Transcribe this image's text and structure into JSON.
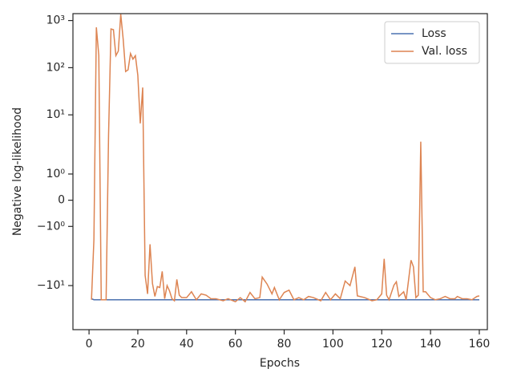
{
  "chart_data": {
    "type": "line",
    "xlabel": "Epochs",
    "ylabel": "Negative log-likelihood",
    "yscale": "symlog",
    "x": [
      1,
      2,
      3,
      4,
      5,
      6,
      7,
      8,
      9,
      10,
      11,
      12,
      13,
      14,
      15,
      16,
      17,
      18,
      19,
      20,
      21,
      22,
      23,
      24,
      25,
      26,
      27,
      28,
      29,
      30,
      31,
      32,
      33,
      34,
      35,
      36,
      37,
      38,
      40,
      42,
      44,
      46,
      48,
      50,
      52,
      55,
      57,
      60,
      62,
      64,
      66,
      68,
      70,
      71,
      73,
      75,
      76,
      78,
      80,
      82,
      84,
      86,
      88,
      90,
      92,
      95,
      97,
      99,
      101,
      103,
      105,
      107,
      109,
      110,
      113,
      116,
      118,
      120,
      121,
      122,
      123,
      125,
      126,
      127,
      129,
      130,
      132,
      133,
      134,
      135,
      136,
      137,
      138,
      140,
      142,
      144,
      146,
      148,
      150,
      151,
      153,
      155,
      157,
      159,
      160
    ],
    "series": [
      {
        "name": "Loss",
        "color": "#4c72b0",
        "values": [
          -19,
          -20,
          -20,
          -20,
          -20,
          -20,
          -20,
          -20,
          -20,
          -20,
          -20,
          -20,
          -20,
          -20,
          -20,
          -20,
          -20,
          -20,
          -20,
          -20,
          -20,
          -20,
          -20,
          -20,
          -20,
          -20,
          -20,
          -20,
          -20,
          -20,
          -20,
          -20,
          -20,
          -20,
          -20,
          -20,
          -20,
          -20,
          -20,
          -20,
          -20,
          -20,
          -20,
          -20,
          -20,
          -20,
          -20,
          -20,
          -20,
          -20,
          -20,
          -20,
          -20,
          -20,
          -20,
          -20,
          -20,
          -20,
          -20,
          -20,
          -20,
          -20,
          -20,
          -20,
          -20,
          -20,
          -20,
          -20,
          -20,
          -20,
          -20,
          -20,
          -20,
          -20,
          -20,
          -20,
          -20,
          -20,
          -20,
          -20,
          -20,
          -20,
          -20,
          -20,
          -20,
          -20,
          -20,
          -20,
          -20,
          -20,
          -20,
          -20,
          -20,
          -20,
          -20,
          -20,
          -20,
          -20,
          -20,
          -20,
          -20,
          -20,
          -20,
          -20,
          -20
        ]
      },
      {
        "name": "Val. loss",
        "color": "#dd8452",
        "values": [
          -20,
          -1.5,
          716,
          182,
          -20,
          -20,
          -20,
          3.7,
          663,
          640,
          180,
          225,
          1365,
          400,
          83,
          90,
          200,
          152,
          180,
          69,
          6.6,
          38,
          -6.1,
          -15,
          -1.68,
          -9,
          -17,
          -10.5,
          -11,
          -5,
          -19,
          -10,
          -13,
          -19,
          -21,
          -7.4,
          -16,
          -18,
          -18,
          -13.5,
          -20,
          -15,
          -16,
          -19,
          -19,
          -21,
          -19,
          -22,
          -18,
          -22,
          -14,
          -19,
          -18,
          -6.6,
          -9.3,
          -15,
          -11,
          -20,
          -14,
          -12.5,
          -20,
          -18,
          -20,
          -17,
          -18,
          -21,
          -14,
          -20,
          -15,
          -19,
          -8,
          -10,
          -4,
          -16.5,
          -18,
          -21,
          -20,
          -15,
          -2.7,
          -16,
          -20,
          -9.8,
          -8.3,
          -17,
          -13.5,
          -20,
          -2.9,
          -4,
          -18,
          -16,
          2.7,
          -13.5,
          -13.5,
          -18,
          -20,
          -19,
          -17,
          -19,
          -19,
          -17,
          -19,
          -19,
          -20,
          -17,
          -16.5
        ]
      }
    ],
    "xlim": [
      -6.6,
      163.3
    ],
    "xticks": [
      0,
      20,
      40,
      60,
      80,
      100,
      120,
      140,
      160
    ],
    "ylim": [
      -86,
      1400
    ],
    "yticks": [
      {
        "value": 1000,
        "label": "10³"
      },
      {
        "value": 100,
        "label": "10²"
      },
      {
        "value": 10,
        "label": "10¹"
      },
      {
        "value": 1,
        "label": "10⁰"
      },
      0,
      {
        "value": -1,
        "label": "−10⁰"
      },
      {
        "value": -10,
        "label": "−10¹"
      }
    ],
    "legend": "upper right"
  }
}
